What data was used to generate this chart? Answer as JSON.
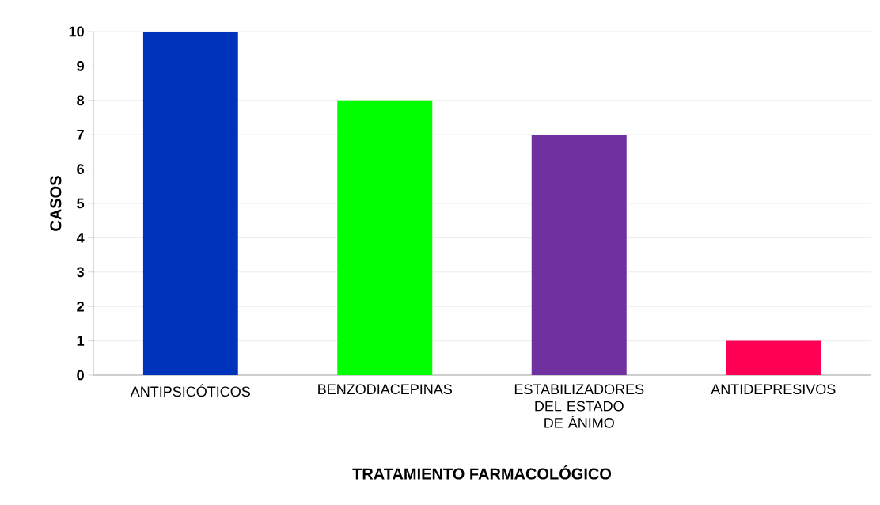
{
  "chart_data": {
    "type": "bar",
    "xlabel": "TRATAMIENTO FARMACOLÓGICO",
    "ylabel": "CASOS",
    "categories": [
      "ANTIPSICÓTICOS",
      "BENZODIACEPINAS",
      "ESTABILIZADORES DEL ESTADO DE ÁNIMO",
      "ANTIDEPRESIVOS"
    ],
    "values": [
      10,
      8,
      7,
      1
    ],
    "colors": [
      "#0033bb",
      "#00ff00",
      "#7030a0",
      "#ff0055"
    ],
    "ylim": [
      0,
      10
    ],
    "yticks": [
      0,
      1,
      2,
      3,
      4,
      5,
      6,
      7,
      8,
      9,
      10
    ],
    "grid": "y"
  }
}
